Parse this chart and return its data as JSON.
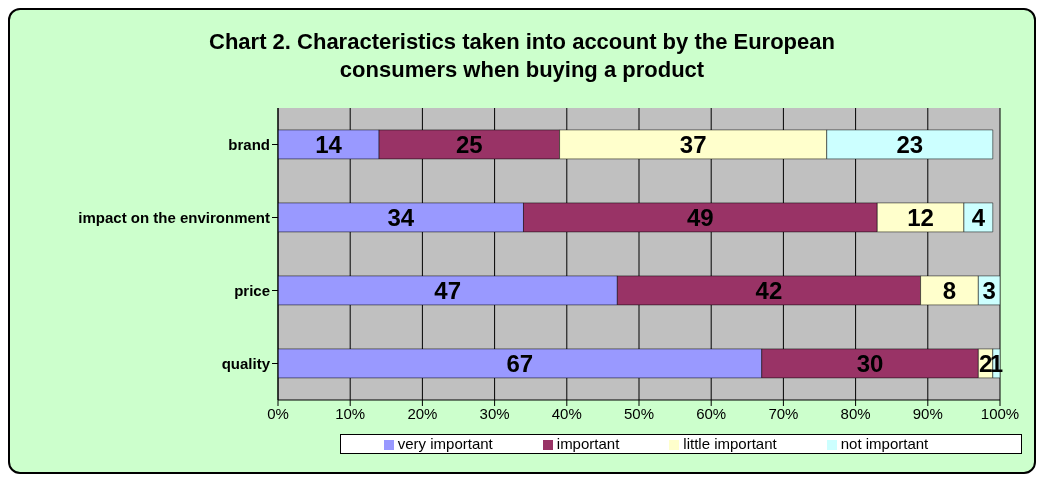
{
  "chart_data": {
    "type": "bar",
    "orientation": "horizontal",
    "stacked": true,
    "title": "Chart 2. Characteristics taken into account by the European consumers when buying a product",
    "categories": [
      "brand",
      "impact on the environment",
      "price",
      "quality"
    ],
    "series": [
      {
        "name": "very important",
        "color": "#9999ff",
        "values": [
          14,
          34,
          47,
          67
        ]
      },
      {
        "name": "important",
        "color": "#993366",
        "values": [
          25,
          49,
          42,
          30
        ]
      },
      {
        "name": "little important",
        "color": "#ffffcc",
        "values": [
          37,
          12,
          8,
          2
        ]
      },
      {
        "name": "not important",
        "color": "#ccffff",
        "values": [
          23,
          4,
          3,
          1
        ]
      }
    ],
    "xlim": [
      0,
      100
    ],
    "xticks": [
      {
        "value": 0,
        "label": "0%"
      },
      {
        "value": 10,
        "label": "10%"
      },
      {
        "value": 20,
        "label": "20%"
      },
      {
        "value": 30,
        "label": "30%"
      },
      {
        "value": 40,
        "label": "40%"
      },
      {
        "value": 50,
        "label": "50%"
      },
      {
        "value": 60,
        "label": "60%"
      },
      {
        "value": 70,
        "label": "70%"
      },
      {
        "value": 80,
        "label": "80%"
      },
      {
        "value": 90,
        "label": "90%"
      },
      {
        "value": 100,
        "label": "100%"
      }
    ],
    "grid": "x",
    "legend": "bottom",
    "data_labels": true
  }
}
